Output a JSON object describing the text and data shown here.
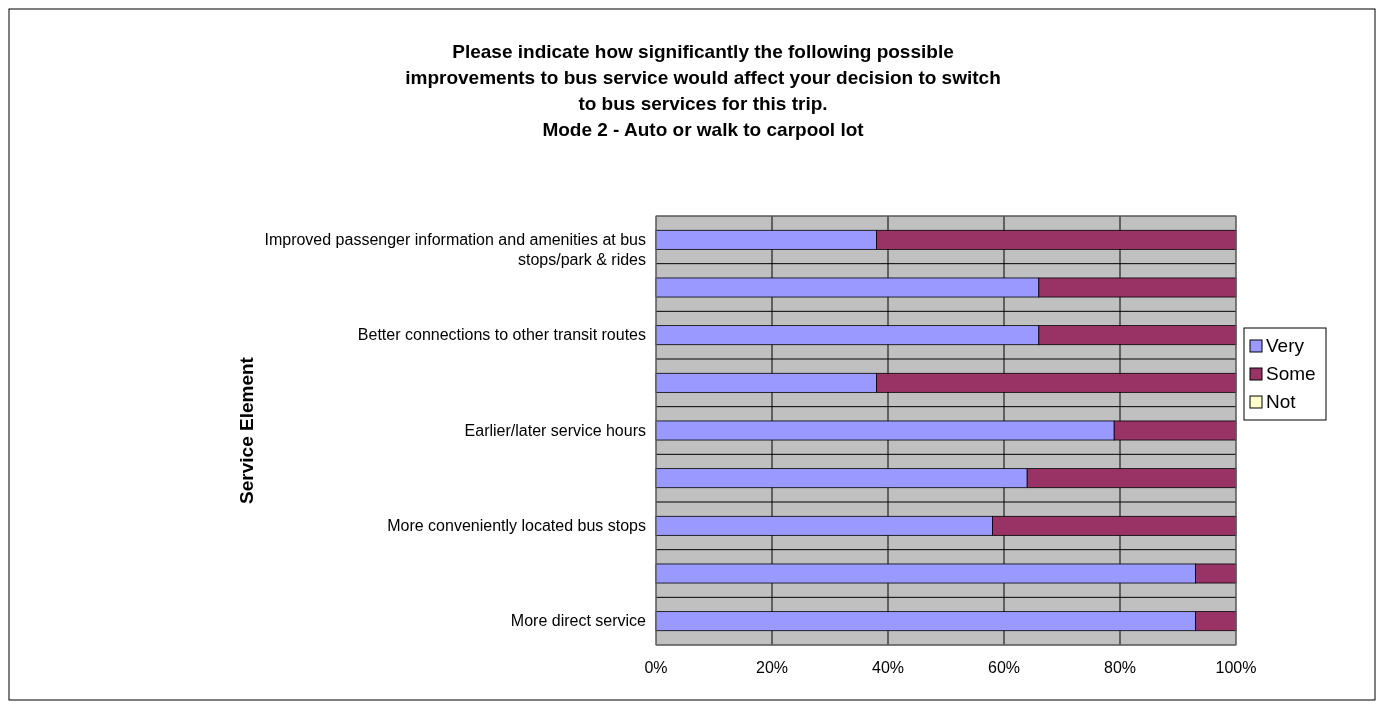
{
  "chart_data": {
    "type": "bar",
    "orientation": "horizontal",
    "stacked": true,
    "title": "Please indicate how significantly  the following possible improvements to bus service would affect your decision to switch to bus services for this trip.",
    "subtitle": "Mode 2 - Auto or walk to carpool lot",
    "ylabel": "Service Element",
    "categories": [
      "Improved passenger information and amenities at bus stops/park & rides",
      null,
      "Better connections to other transit routes",
      null,
      "Earlier/later service hours",
      null,
      "More conveniently located bus stops",
      null,
      "More direct service"
    ],
    "series": [
      {
        "name": "Very",
        "color": "#9999ff",
        "values": [
          38,
          66,
          66,
          38,
          79,
          64,
          58,
          93,
          93
        ]
      },
      {
        "name": "Some",
        "color": "#993366",
        "values": [
          62,
          34,
          34,
          62,
          21,
          36,
          42,
          7,
          7
        ]
      },
      {
        "name": "Not",
        "color": "#ffffcc",
        "values": [
          0,
          0,
          0,
          0,
          0,
          0,
          0,
          0,
          0
        ]
      }
    ],
    "xlim": [
      0,
      100
    ],
    "xticks": [
      {
        "value": 0,
        "label": "0%"
      },
      {
        "value": 20,
        "label": "20%"
      },
      {
        "value": 40,
        "label": "40%"
      },
      {
        "value": 60,
        "label": "60%"
      },
      {
        "value": 80,
        "label": "80%"
      },
      {
        "value": 100,
        "label": "100%"
      }
    ],
    "grid": true,
    "legend": "right"
  }
}
